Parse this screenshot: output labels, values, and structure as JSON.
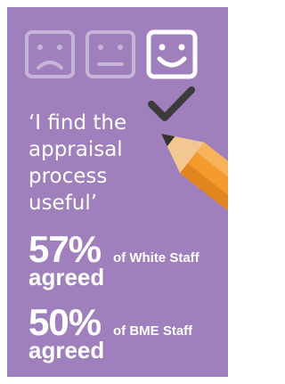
{
  "quote": {
    "lines": [
      "‘I find the",
      "appraisal",
      "process",
      "useful’"
    ]
  },
  "stats": [
    {
      "figure": "57%",
      "group": "of White Staff",
      "verb": "agreed"
    },
    {
      "figure": "50%",
      "group": "of BME Staff",
      "verb": "agreed"
    }
  ]
}
